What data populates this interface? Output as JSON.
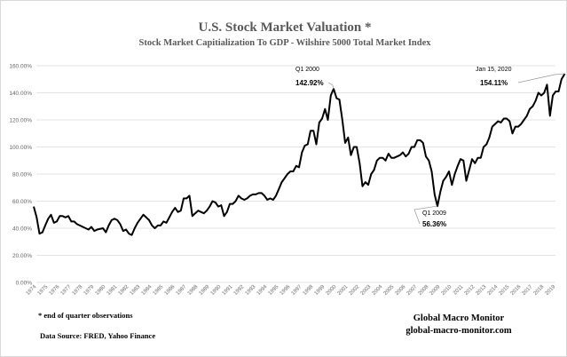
{
  "chart_data": {
    "type": "line",
    "title": "U.S. Stock Market Valuation *",
    "subtitle": "Stock Market Capitialization To GDP -  Wilshire 5000 Total Market Index",
    "ylim": [
      0,
      160
    ],
    "yticks": [
      "0.00%",
      "20.00%",
      "40.00%",
      "60.00%",
      "80.00%",
      "100.00%",
      "120.00%",
      "140.00%",
      "160.00%"
    ],
    "xticks": [
      "1974",
      "1975",
      "1976",
      "1977",
      "1978",
      "1979",
      "1980",
      "1981",
      "1982",
      "1983",
      "1984",
      "1985",
      "1986",
      "1987",
      "1988",
      "1989",
      "1990",
      "1991",
      "1992",
      "1993",
      "1994",
      "1995",
      "1996",
      "1997",
      "1998",
      "1999",
      "2000",
      "2001",
      "2002",
      "2003",
      "2004",
      "2005",
      "2006",
      "2007",
      "2008",
      "2009",
      "2010",
      "2011",
      "2012",
      "2013",
      "2014",
      "2015",
      "2016",
      "2017",
      "2018",
      "2019"
    ],
    "grid": true,
    "line_color": "#000000",
    "series": [
      {
        "points": [
          [
            1974.0,
            56
          ],
          [
            1974.25,
            48
          ],
          [
            1974.5,
            36
          ],
          [
            1974.75,
            37
          ],
          [
            1975.0,
            42
          ],
          [
            1975.25,
            47
          ],
          [
            1975.5,
            50
          ],
          [
            1975.75,
            44
          ],
          [
            1976.0,
            45
          ],
          [
            1976.25,
            49
          ],
          [
            1976.5,
            49
          ],
          [
            1976.75,
            48
          ],
          [
            1977.0,
            49
          ],
          [
            1977.25,
            45
          ],
          [
            1977.5,
            45
          ],
          [
            1977.75,
            43
          ],
          [
            1978.0,
            42
          ],
          [
            1978.5,
            40
          ],
          [
            1978.75,
            39
          ],
          [
            1979.0,
            41
          ],
          [
            1979.25,
            38
          ],
          [
            1979.5,
            39
          ],
          [
            1980.0,
            40
          ],
          [
            1980.25,
            37
          ],
          [
            1980.5,
            42
          ],
          [
            1980.75,
            46
          ],
          [
            1981.0,
            47
          ],
          [
            1981.25,
            46
          ],
          [
            1981.5,
            43
          ],
          [
            1981.75,
            38
          ],
          [
            1982.0,
            39
          ],
          [
            1982.25,
            36
          ],
          [
            1982.5,
            35
          ],
          [
            1982.75,
            40
          ],
          [
            1983.0,
            44
          ],
          [
            1983.5,
            50
          ],
          [
            1983.75,
            48
          ],
          [
            1984.0,
            46
          ],
          [
            1984.25,
            42
          ],
          [
            1984.5,
            40
          ],
          [
            1984.75,
            42
          ],
          [
            1985.0,
            42
          ],
          [
            1985.25,
            45
          ],
          [
            1985.5,
            44
          ],
          [
            1985.75,
            48
          ],
          [
            1986.0,
            52
          ],
          [
            1986.25,
            55
          ],
          [
            1986.5,
            52
          ],
          [
            1986.75,
            53
          ],
          [
            1987.0,
            62
          ],
          [
            1987.25,
            62
          ],
          [
            1987.5,
            64
          ],
          [
            1987.75,
            49
          ],
          [
            1988.0,
            51
          ],
          [
            1988.25,
            53
          ],
          [
            1988.5,
            52
          ],
          [
            1988.75,
            51
          ],
          [
            1989.0,
            53
          ],
          [
            1989.25,
            56
          ],
          [
            1989.5,
            60
          ],
          [
            1989.75,
            59
          ],
          [
            1990.0,
            56
          ],
          [
            1990.25,
            57
          ],
          [
            1990.5,
            49
          ],
          [
            1990.75,
            52
          ],
          [
            1991.0,
            58
          ],
          [
            1991.25,
            58
          ],
          [
            1991.5,
            60
          ],
          [
            1991.75,
            64
          ],
          [
            1992.0,
            62
          ],
          [
            1992.25,
            61
          ],
          [
            1992.5,
            62
          ],
          [
            1992.75,
            64
          ],
          [
            1993.0,
            65
          ],
          [
            1993.25,
            65
          ],
          [
            1993.5,
            66
          ],
          [
            1993.75,
            66
          ],
          [
            1994.0,
            64
          ],
          [
            1994.25,
            61
          ],
          [
            1994.5,
            62
          ],
          [
            1994.75,
            61
          ],
          [
            1995.0,
            64
          ],
          [
            1995.25,
            69
          ],
          [
            1995.5,
            74
          ],
          [
            1995.75,
            77
          ],
          [
            1996.0,
            80
          ],
          [
            1996.25,
            82
          ],
          [
            1996.5,
            82
          ],
          [
            1996.75,
            86
          ],
          [
            1997.0,
            85
          ],
          [
            1997.25,
            96
          ],
          [
            1997.5,
            101
          ],
          [
            1997.75,
            102
          ],
          [
            1998.0,
            112
          ],
          [
            1998.25,
            112
          ],
          [
            1998.5,
            102
          ],
          [
            1998.75,
            118
          ],
          [
            1999.0,
            121
          ],
          [
            1999.25,
            128
          ],
          [
            1999.5,
            120
          ],
          [
            1999.75,
            138
          ],
          [
            2000.0,
            142.92
          ],
          [
            2000.25,
            136
          ],
          [
            2000.5,
            135
          ],
          [
            2000.75,
            120
          ],
          [
            2001.0,
            103
          ],
          [
            2001.25,
            107
          ],
          [
            2001.5,
            94
          ],
          [
            2001.75,
            100
          ],
          [
            2002.0,
            100
          ],
          [
            2002.25,
            88
          ],
          [
            2002.5,
            71
          ],
          [
            2002.75,
            74
          ],
          [
            2003.0,
            72
          ],
          [
            2003.25,
            80
          ],
          [
            2003.5,
            83
          ],
          [
            2003.75,
            90
          ],
          [
            2004.0,
            92
          ],
          [
            2004.25,
            92
          ],
          [
            2004.5,
            90
          ],
          [
            2004.75,
            95
          ],
          [
            2005.0,
            92
          ],
          [
            2005.25,
            92
          ],
          [
            2005.5,
            93
          ],
          [
            2005.75,
            94
          ],
          [
            2006.0,
            96
          ],
          [
            2006.25,
            93
          ],
          [
            2006.5,
            95
          ],
          [
            2006.75,
            100
          ],
          [
            2007.0,
            100
          ],
          [
            2007.25,
            105
          ],
          [
            2007.5,
            105
          ],
          [
            2007.75,
            103
          ],
          [
            2008.0,
            93
          ],
          [
            2008.25,
            90
          ],
          [
            2008.5,
            82
          ],
          [
            2008.75,
            65
          ],
          [
            2009.0,
            56.36
          ],
          [
            2009.25,
            67
          ],
          [
            2009.5,
            75
          ],
          [
            2009.75,
            78
          ],
          [
            2010.0,
            82
          ],
          [
            2010.25,
            72
          ],
          [
            2010.5,
            80
          ],
          [
            2010.75,
            86
          ],
          [
            2011.0,
            91
          ],
          [
            2011.25,
            90
          ],
          [
            2011.5,
            75
          ],
          [
            2011.75,
            83
          ],
          [
            2012.0,
            91
          ],
          [
            2012.25,
            88
          ],
          [
            2012.5,
            92
          ],
          [
            2012.75,
            92
          ],
          [
            2013.0,
            100
          ],
          [
            2013.25,
            102
          ],
          [
            2013.5,
            107
          ],
          [
            2013.75,
            115
          ],
          [
            2014.0,
            117
          ],
          [
            2014.25,
            119
          ],
          [
            2014.5,
            118
          ],
          [
            2014.75,
            121
          ],
          [
            2015.0,
            121
          ],
          [
            2015.25,
            119
          ],
          [
            2015.5,
            110
          ],
          [
            2015.75,
            115
          ],
          [
            2016.0,
            115
          ],
          [
            2016.25,
            117
          ],
          [
            2016.5,
            120
          ],
          [
            2016.75,
            123
          ],
          [
            2017.0,
            128
          ],
          [
            2017.25,
            130
          ],
          [
            2017.5,
            134
          ],
          [
            2017.75,
            140
          ],
          [
            2018.0,
            138
          ],
          [
            2018.25,
            140
          ],
          [
            2018.5,
            146
          ],
          [
            2018.75,
            123
          ],
          [
            2019.0,
            138
          ],
          [
            2019.25,
            141
          ],
          [
            2019.5,
            141
          ],
          [
            2019.75,
            150
          ],
          [
            2020.04,
            154.11
          ]
        ]
      }
    ],
    "annotations": [
      {
        "label": "Q1 2000",
        "value": "142.92%",
        "x": 2000.0,
        "y": 142.92
      },
      {
        "label": "Q1 2009",
        "value": "56.36%",
        "x": 2009.0,
        "y": 56.36
      },
      {
        "label": "Jan 15, 2020",
        "value": "154.11%",
        "x": 2020.04,
        "y": 154.11
      }
    ]
  },
  "footer": {
    "note": "*   end of quarter  observations",
    "source": "Data Source:  FRED, Yahoo  Finance",
    "brand": "Global Macro Monitor",
    "site": "global-macro-monitor.com"
  }
}
